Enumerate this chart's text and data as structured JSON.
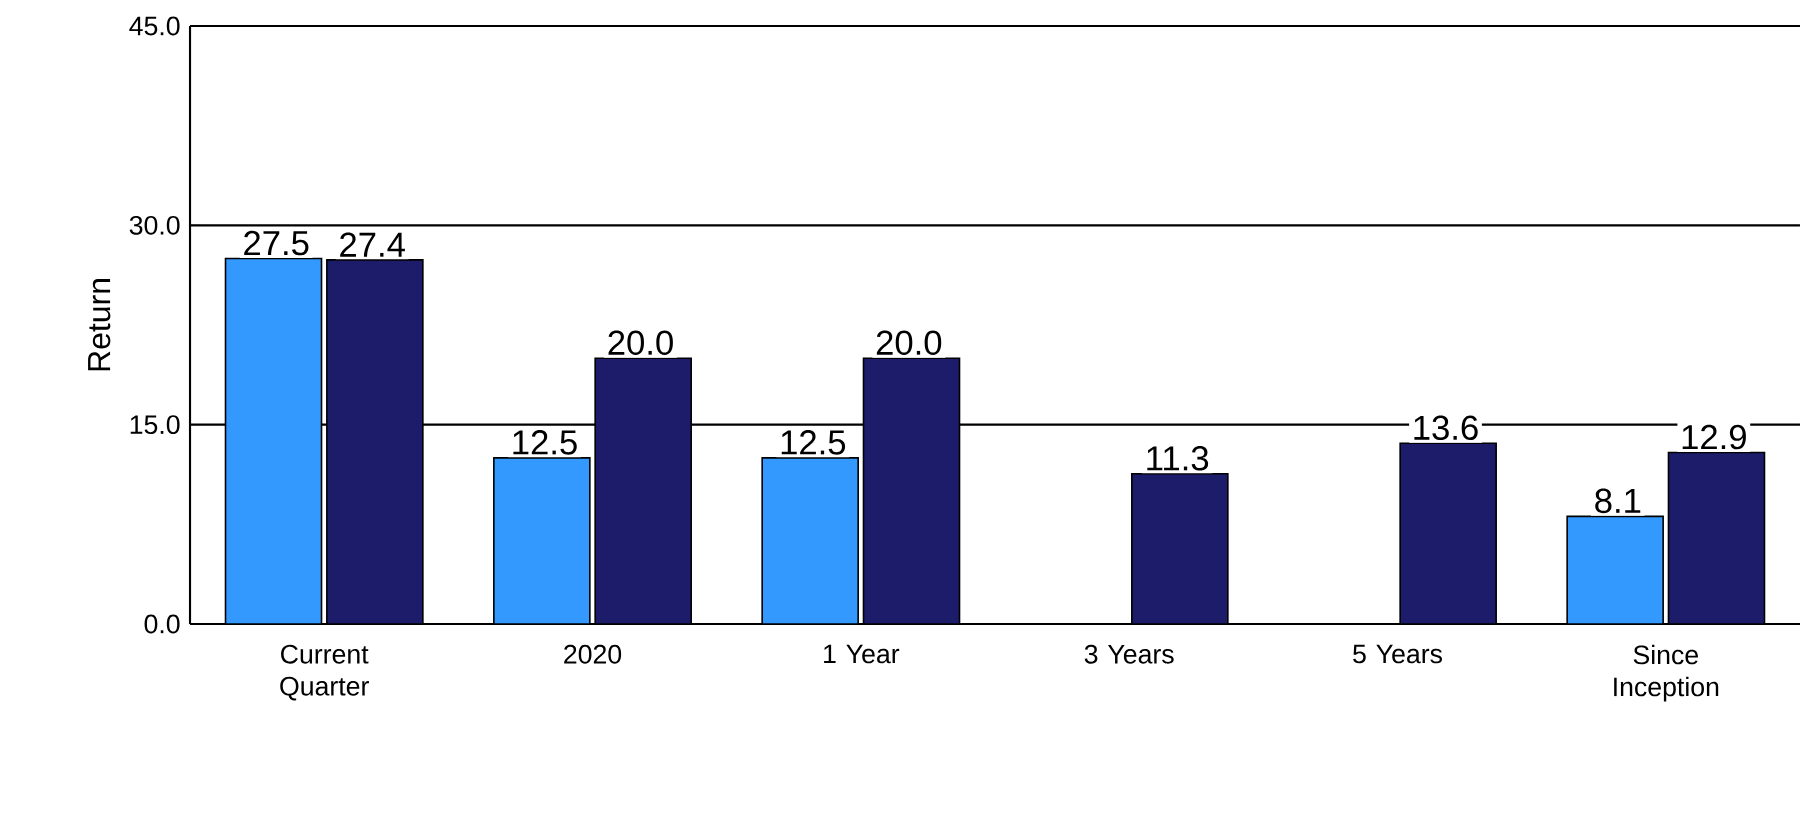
{
  "chart_data": {
    "type": "bar",
    "ylabel": "Return",
    "categories": [
      "Current Quarter",
      "2020",
      "1 Year",
      "3 Years",
      "5 Years",
      "Since Inception"
    ],
    "series": [
      {
        "color": "#3399ff",
        "values": [
          27.5,
          12.5,
          12.5,
          null,
          null,
          8.1
        ],
        "value_labels": [
          "27.5",
          "12.5",
          "12.5",
          null,
          null,
          "8.1"
        ]
      },
      {
        "color": "#1c1c6b",
        "values": [
          27.4,
          20.0,
          20.0,
          11.3,
          13.6,
          12.9
        ],
        "value_labels": [
          "27.4",
          "20.0",
          "20.0",
          "11.3",
          "13.6",
          "12.9"
        ]
      }
    ],
    "ylim": [
      0,
      45
    ],
    "yticks": [
      {
        "value": 0,
        "label": "0.0"
      },
      {
        "value": 15,
        "label": "15.0"
      },
      {
        "value": 30,
        "label": "30.0"
      },
      {
        "value": 45,
        "label": "45.0"
      }
    ],
    "grid": "y"
  }
}
